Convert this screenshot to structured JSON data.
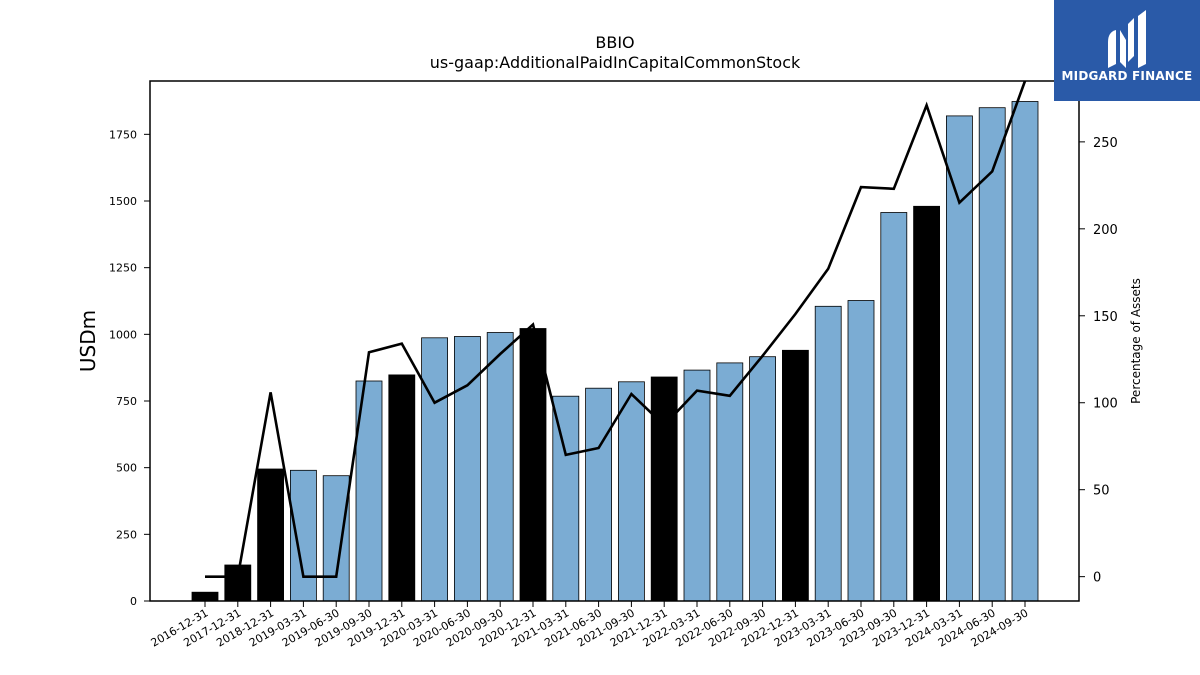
{
  "chart_data": {
    "type": "bar",
    "title": "BBIO",
    "subtitle": "us-gaap:AdditionalPaidInCapitalCommonStock",
    "ylabel": "USDm",
    "ylabel_right": "Percentage of Assets",
    "ylim": [
      0,
      1950
    ],
    "ylim_right": [
      -14,
      285
    ],
    "yticks": [
      0,
      250,
      500,
      750,
      1000,
      1250,
      1500,
      1750
    ],
    "yticks_right": [
      0,
      50,
      100,
      150,
      200,
      250
    ],
    "categories": [
      "2016-12-31",
      "2017-12-31",
      "2018-12-31",
      "2019-03-31",
      "2019-06-30",
      "2019-09-30",
      "2019-12-31",
      "2020-03-31",
      "2020-06-30",
      "2020-09-30",
      "2020-12-31",
      "2021-03-31",
      "2021-06-30",
      "2021-09-30",
      "2021-12-31",
      "2022-03-31",
      "2022-06-30",
      "2022-09-30",
      "2022-12-31",
      "2023-03-31",
      "2023-06-30",
      "2023-09-30",
      "2023-12-31",
      "2024-03-31",
      "2024-06-30",
      "2024-09-30"
    ],
    "series": [
      {
        "type": "bar",
        "values": [
          33,
          135,
          495,
          490,
          470,
          825,
          848,
          987,
          992,
          1007,
          1022,
          768,
          798,
          822,
          840,
          866,
          893,
          916,
          940,
          1105,
          1127,
          1457,
          1480,
          1819,
          1850,
          1873
        ],
        "colors": [
          "#000000",
          "#000000",
          "#000000",
          "#7bacd3",
          "#7bacd3",
          "#7bacd3",
          "#000000",
          "#7bacd3",
          "#7bacd3",
          "#7bacd3",
          "#000000",
          "#7bacd3",
          "#7bacd3",
          "#7bacd3",
          "#000000",
          "#7bacd3",
          "#7bacd3",
          "#7bacd3",
          "#000000",
          "#7bacd3",
          "#7bacd3",
          "#7bacd3",
          "#000000",
          "#7bacd3",
          "#7bacd3",
          "#7bacd3"
        ]
      },
      {
        "type": "line",
        "axis": "right",
        "color": "#000000",
        "values": [
          0,
          0,
          106,
          0,
          0,
          129,
          134,
          100,
          110,
          128,
          145,
          70,
          74,
          105,
          87,
          107,
          104,
          127,
          151,
          177,
          224,
          223,
          271,
          215,
          233,
          285
        ]
      }
    ],
    "grid": false,
    "legend": "none"
  },
  "logo": {
    "brand_text": "MIDGARD FINANCE",
    "icon": "midgard-logo-icon",
    "background": "#2a5aa8"
  }
}
